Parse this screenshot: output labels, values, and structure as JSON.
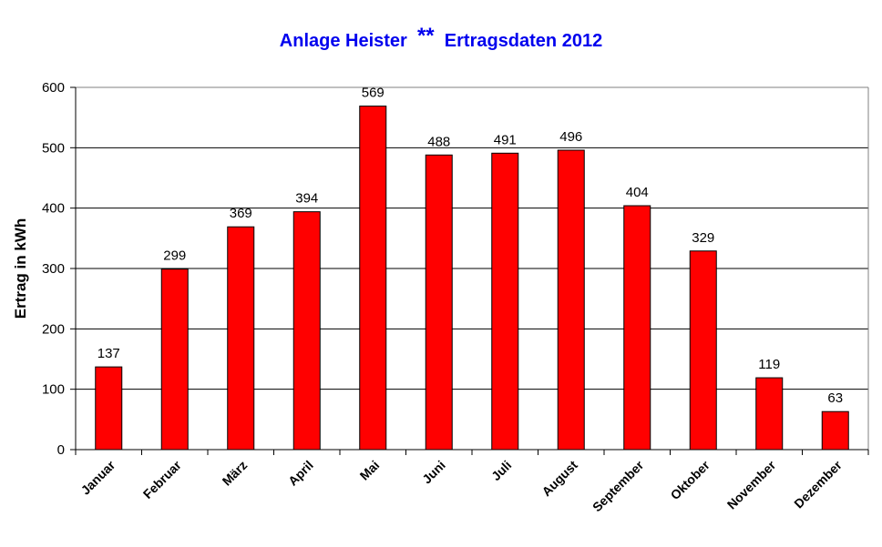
{
  "chart_data": {
    "type": "bar",
    "title_part1": "Anlage Heister",
    "title_stars": "**",
    "title_part2": "Ertragsdaten 2012",
    "ylabel": "Ertrag in kWh",
    "xlabel": "",
    "ylim": [
      0,
      600
    ],
    "yticks": [
      0,
      100,
      200,
      300,
      400,
      500,
      600
    ],
    "grid": true,
    "legend": "none",
    "bar_color": "#ff0000",
    "categories": [
      "Januar",
      "Februar",
      "März",
      "April",
      "Mai",
      "Juni",
      "Juli",
      "August",
      "September",
      "Oktober",
      "November",
      "Dezember"
    ],
    "values": [
      137,
      299,
      369,
      394,
      569,
      488,
      491,
      496,
      404,
      329,
      119,
      63
    ]
  }
}
